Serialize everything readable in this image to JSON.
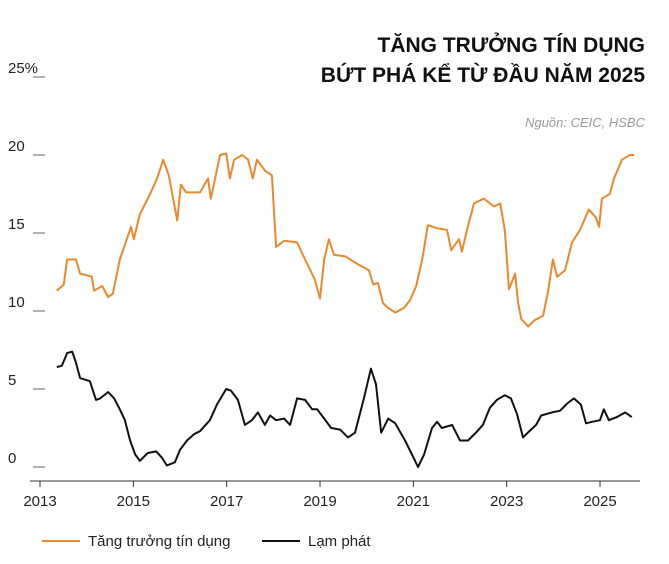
{
  "chart_data": {
    "type": "line",
    "title": [
      "TĂNG TRƯỞNG TÍN DỤNG",
      "BỨT PHÁ KỂ TỪ ĐẦU NĂM 2025"
    ],
    "source": "Nguồn: CEIC, HSBC",
    "xlim": [
      2013,
      2026
    ],
    "xticks": [
      2013,
      2015,
      2017,
      2019,
      2021,
      2023,
      2025
    ],
    "ylim": [
      0,
      25
    ],
    "yticks": [
      0,
      5,
      10,
      15,
      20,
      {
        "value": 25,
        "label": "25%"
      }
    ],
    "series": [
      {
        "name": "Tăng trưởng tín dụng",
        "color": "#e8892b",
        "x": [
          2013.36,
          2013.51,
          2013.58,
          2013.77,
          2013.86,
          2014.11,
          2014.16,
          2014.33,
          2014.46,
          2014.56,
          2014.65,
          2014.71,
          2014.86,
          2014.95,
          2015.01,
          2015.14,
          2015.36,
          2015.51,
          2015.64,
          2015.76,
          2015.94,
          2016.02,
          2016.13,
          2016.43,
          2016.6,
          2016.66,
          2016.86,
          2016.99,
          2017.07,
          2017.16,
          2017.33,
          2017.46,
          2017.56,
          2017.65,
          2017.82,
          2017.97,
          2018.06,
          2018.23,
          2018.51,
          2018.68,
          2018.89,
          2019.0,
          2019.09,
          2019.19,
          2019.3,
          2019.54,
          2019.81,
          2020.05,
          2020.14,
          2020.24,
          2020.35,
          2020.46,
          2020.61,
          2020.8,
          2020.93,
          2021.06,
          2021.19,
          2021.31,
          2021.51,
          2021.72,
          2021.81,
          2021.98,
          2022.04,
          2022.15,
          2022.3,
          2022.51,
          2022.73,
          2022.86,
          2022.96,
          2023.05,
          2023.18,
          2023.24,
          2023.31,
          2023.46,
          2023.59,
          2023.78,
          2023.89,
          2023.99,
          2024.08,
          2024.25,
          2024.4,
          2024.57,
          2024.76,
          2024.91,
          2024.98,
          2025.04,
          2025.21,
          2025.3,
          2025.47,
          2025.64,
          2025.73
        ],
        "values": [
          11.3,
          11.7,
          13.3,
          13.3,
          12.4,
          12.2,
          11.3,
          11.6,
          10.9,
          11.1,
          12.4,
          13.3,
          14.6,
          15.4,
          14.6,
          16.2,
          17.5,
          18.5,
          19.7,
          18.7,
          15.8,
          18.1,
          17.6,
          17.6,
          18.5,
          17.2,
          20.0,
          20.1,
          18.5,
          19.7,
          20.0,
          19.7,
          18.5,
          19.7,
          19.0,
          18.7,
          14.1,
          14.5,
          14.4,
          13.3,
          12.0,
          10.8,
          13.3,
          14.6,
          13.6,
          13.5,
          13.0,
          12.6,
          11.7,
          11.8,
          10.5,
          10.2,
          9.9,
          10.2,
          10.7,
          11.6,
          13.3,
          15.5,
          15.3,
          15.2,
          13.9,
          14.6,
          13.8,
          15.2,
          16.9,
          17.2,
          16.7,
          16.9,
          15.2,
          11.4,
          12.4,
          10.6,
          9.5,
          9.0,
          9.4,
          9.7,
          11.3,
          13.3,
          12.2,
          12.6,
          14.4,
          15.2,
          16.5,
          16.0,
          15.4,
          17.2,
          17.5,
          18.5,
          19.7,
          20.0,
          20.0
        ]
      },
      {
        "name": "Lạm phát",
        "color": "#111111",
        "x": [
          2013.36,
          2013.47,
          2013.58,
          2013.69,
          2013.77,
          2013.86,
          2014.07,
          2014.2,
          2014.29,
          2014.46,
          2014.59,
          2014.71,
          2014.82,
          2014.93,
          2015.04,
          2015.14,
          2015.31,
          2015.49,
          2015.61,
          2015.72,
          2015.89,
          2016.0,
          2016.15,
          2016.3,
          2016.43,
          2016.64,
          2016.79,
          2016.99,
          2017.09,
          2017.24,
          2017.39,
          2017.54,
          2017.67,
          2017.82,
          2017.93,
          2018.06,
          2018.23,
          2018.36,
          2018.51,
          2018.68,
          2018.83,
          2018.94,
          2019.09,
          2019.24,
          2019.43,
          2019.6,
          2019.75,
          2019.94,
          2020.09,
          2020.2,
          2020.31,
          2020.46,
          2020.61,
          2020.82,
          2020.97,
          2021.1,
          2021.23,
          2021.4,
          2021.51,
          2021.61,
          2021.83,
          2022.0,
          2022.17,
          2022.34,
          2022.49,
          2022.64,
          2022.79,
          2022.96,
          2023.09,
          2023.22,
          2023.35,
          2023.52,
          2023.63,
          2023.74,
          2023.97,
          2024.14,
          2024.31,
          2024.44,
          2024.59,
          2024.7,
          2024.83,
          2025.0,
          2025.08,
          2025.19,
          2025.36,
          2025.54,
          2025.68
        ],
        "values": [
          6.4,
          6.5,
          7.3,
          7.4,
          6.7,
          5.7,
          5.5,
          4.3,
          4.4,
          4.8,
          4.4,
          3.7,
          3.0,
          1.7,
          0.8,
          0.4,
          0.9,
          1.0,
          0.6,
          0.1,
          0.3,
          1.1,
          1.7,
          2.1,
          2.3,
          3.0,
          4.0,
          5.0,
          4.9,
          4.3,
          2.7,
          3.0,
          3.5,
          2.7,
          3.3,
          3.0,
          3.1,
          2.7,
          4.4,
          4.3,
          3.7,
          3.7,
          3.1,
          2.5,
          2.4,
          1.9,
          2.2,
          4.4,
          6.3,
          5.3,
          2.2,
          3.1,
          2.8,
          1.7,
          0.8,
          0.0,
          0.8,
          2.5,
          2.9,
          2.5,
          2.7,
          1.7,
          1.7,
          2.2,
          2.7,
          3.8,
          4.3,
          4.6,
          4.4,
          3.4,
          1.9,
          2.4,
          2.7,
          3.3,
          3.5,
          3.6,
          4.1,
          4.4,
          4.0,
          2.8,
          2.9,
          3.0,
          3.7,
          3.0,
          3.2,
          3.5,
          3.2
        ]
      }
    ]
  }
}
